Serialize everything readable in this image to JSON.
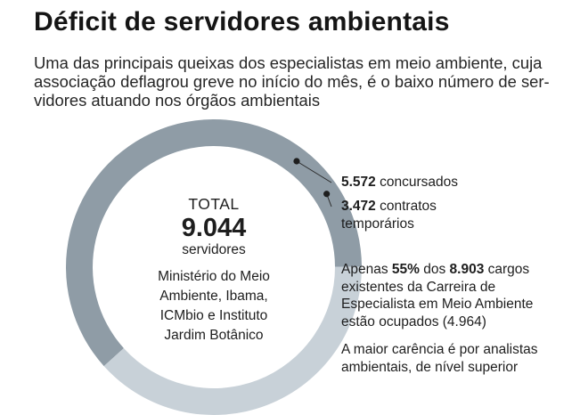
{
  "header": {
    "title": "Déficit de servidores ambientais",
    "subtitle_lines": [
      "Uma das principais queixas dos especialistas em meio ambiente, cuja",
      "associação deflagrou greve no início do mês, é o baixo número de ser-",
      "vidores atuando nos órgãos ambientais"
    ]
  },
  "center": {
    "total_label": "TOTAL",
    "total_value": "9.044",
    "total_unit": "servidores",
    "org_lines": [
      "Ministério do Meio",
      "Ambiente, Ibama,",
      "ICMbio e Instituto",
      "Jardim Botânico"
    ]
  },
  "chart_data": {
    "type": "pie",
    "variant": "donut",
    "title": "Déficit de servidores ambientais",
    "total": 9044,
    "series": [
      {
        "name": "concursados",
        "value": 5572,
        "value_label": "5.572",
        "color": "#8f9ca6"
      },
      {
        "name": "contratos temporários",
        "value": 3472,
        "value_label": "3.472",
        "name_lines": [
          "contratos",
          "temporários"
        ],
        "color": "#c8d1d8"
      }
    ]
  },
  "notes": {
    "note1": {
      "l1_prefix": "Apenas ",
      "pct": "55%",
      "l1_mid": " dos ",
      "cargos": "8.903",
      "l1_suffix": " cargos",
      "l2": "existentes da Carreira de",
      "l3": "Especialista em Meio Ambiente",
      "l4": "estão ocupados (4.964)"
    },
    "note2_lines": [
      "A maior carência é por analistas",
      "ambientais, de nível superior"
    ]
  }
}
